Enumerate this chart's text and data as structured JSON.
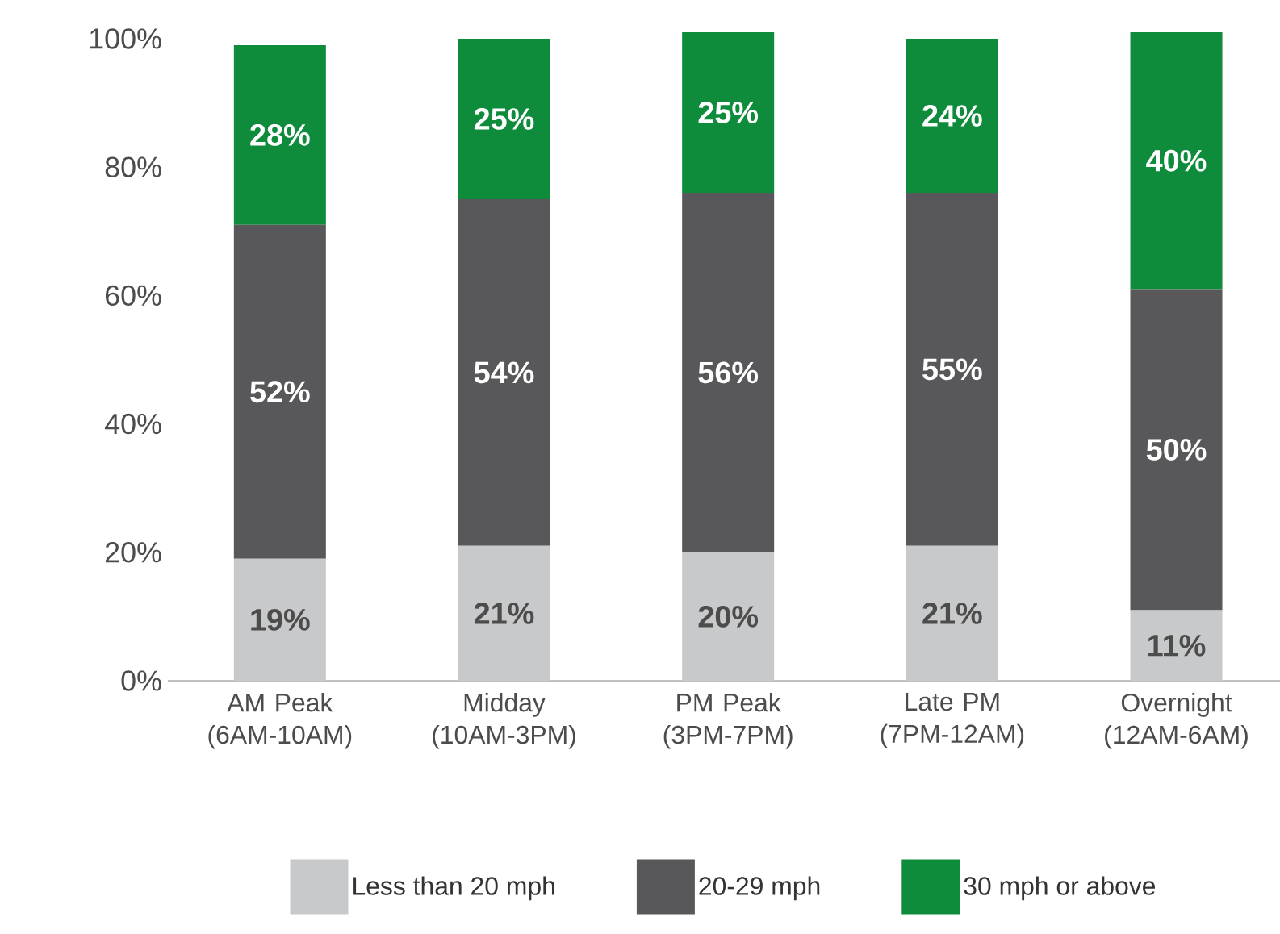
{
  "chart_data": {
    "type": "bar",
    "stacked": true,
    "legend": "bottom",
    "grid": false,
    "categories": [
      "AM Peak (6AM-10AM)",
      "Midday (10AM-3PM)",
      "PM Peak (3PM-7PM)",
      "Late PM (7PM-12AM)",
      "Overnight (12AM-6AM)"
    ],
    "series": [
      {
        "name": "Less than 20 mph",
        "color": "#c8c9cb",
        "values": [
          19,
          21,
          20,
          21,
          11
        ],
        "value_labels": [
          "19%",
          "21%",
          "20%",
          "21%",
          "11%"
        ]
      },
      {
        "name": "20-29 mph",
        "color": "#58585a",
        "values": [
          52,
          54,
          56,
          55,
          50
        ],
        "value_labels": [
          "52%",
          "54%",
          "56%",
          "55%",
          "50%"
        ]
      },
      {
        "name": "30 mph or above",
        "color": "#0f8c3b",
        "values": [
          28,
          25,
          25,
          24,
          40
        ],
        "value_labels": [
          "28%",
          "25%",
          "25%",
          "24%",
          "40%"
        ]
      }
    ],
    "ylim": [
      0,
      101
    ],
    "yticks": [
      {
        "value": 0,
        "label": "0%"
      },
      {
        "value": 20,
        "label": "20%"
      },
      {
        "value": 40,
        "label": "40%"
      },
      {
        "value": 60,
        "label": "60%"
      },
      {
        "value": 80,
        "label": "80%"
      },
      {
        "value": 100,
        "label": "100%"
      }
    ]
  }
}
